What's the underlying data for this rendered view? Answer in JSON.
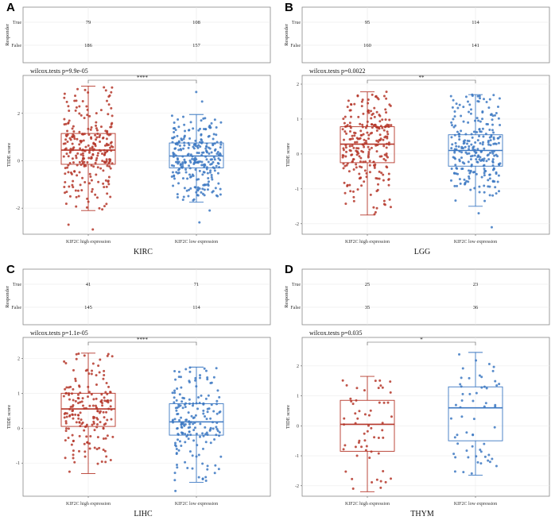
{
  "chart_data": [
    {
      "panel": "A",
      "type": "box",
      "cancer": "KIRC",
      "responder_table": {
        "ylabel": "Responder",
        "rows": [
          "True",
          "False"
        ],
        "counts": [
          [
            79,
            108
          ],
          [
            186,
            157
          ]
        ]
      },
      "test_label": "wilcox.tests p=9.9e-05",
      "significance": "****",
      "ylabel": "TIDE score",
      "xlabel": "KIRC",
      "categories": [
        "KIF2C high expression",
        "KIF2C low expression"
      ],
      "yticks": [
        -2,
        0,
        2
      ],
      "ylim": [
        -3.1,
        3.6
      ],
      "boxes": [
        {
          "name": "KIF2C high expression",
          "color": "#b5372a",
          "min": -2.1,
          "q1": -0.15,
          "median": 0.45,
          "q3": 1.15,
          "max": 3.15,
          "n": 265,
          "outliers": [
            -2.7,
            -2.9
          ]
        },
        {
          "name": "KIF2C low expression",
          "color": "#3c78c2",
          "min": -1.75,
          "q1": -0.3,
          "median": 0.2,
          "q3": 0.75,
          "max": 1.95,
          "n": 265,
          "outliers": [
            2.9,
            2.5,
            -2.1,
            -2.6
          ]
        }
      ]
    },
    {
      "panel": "B",
      "type": "box",
      "cancer": "LGG",
      "responder_table": {
        "ylabel": "Responder",
        "rows": [
          "True",
          "False"
        ],
        "counts": [
          [
            95,
            114
          ],
          [
            160,
            141
          ]
        ]
      },
      "test_label": "wilcox.tests p=0.0022",
      "significance": "**",
      "ylabel": "TIDE score",
      "xlabel": "LGG",
      "categories": [
        "KIF2C high expression",
        "KIF2C low expression"
      ],
      "yticks": [
        -2,
        -1,
        0,
        1,
        2
      ],
      "ylim": [
        -2.3,
        2.25
      ],
      "boxes": [
        {
          "name": "KIF2C high expression",
          "color": "#b5372a",
          "min": -1.75,
          "q1": -0.25,
          "median": 0.28,
          "q3": 0.78,
          "max": 1.78,
          "n": 255,
          "outliers": []
        },
        {
          "name": "KIF2C low expression",
          "color": "#3c78c2",
          "min": -1.5,
          "q1": -0.35,
          "median": 0.1,
          "q3": 0.55,
          "max": 1.7,
          "n": 255,
          "outliers": [
            -2.1,
            -1.7
          ]
        }
      ]
    },
    {
      "panel": "C",
      "type": "box",
      "cancer": "LIHC",
      "responder_table": {
        "ylabel": "Responder",
        "rows": [
          "True",
          "False"
        ],
        "counts": [
          [
            41,
            71
          ],
          [
            145,
            114
          ]
        ]
      },
      "test_label": "wilcox.tests p=1.1e-05",
      "significance": "****",
      "ylabel": "TIDE score",
      "xlabel": "LIHC",
      "categories": [
        "KIF2C high expression",
        "KIF2C low expression"
      ],
      "yticks": [
        -1,
        0,
        1,
        2
      ],
      "ylim": [
        -1.95,
        2.6
      ],
      "boxes": [
        {
          "name": "KIF2C high expression",
          "color": "#b5372a",
          "min": -1.3,
          "q1": 0.05,
          "median": 0.55,
          "q3": 1.0,
          "max": 2.15,
          "n": 186,
          "outliers": []
        },
        {
          "name": "KIF2C low expression",
          "color": "#3c78c2",
          "min": -1.55,
          "q1": -0.2,
          "median": 0.18,
          "q3": 0.7,
          "max": 1.75,
          "n": 185,
          "outliers": [
            -1.8
          ]
        }
      ]
    },
    {
      "panel": "D",
      "type": "box",
      "cancer": "THYM",
      "responder_table": {
        "ylabel": "Responder",
        "rows": [
          "True",
          "False"
        ],
        "counts": [
          [
            25,
            23
          ],
          [
            35,
            36
          ]
        ]
      },
      "test_label": "wilcox.tests p=0.035",
      "significance": "*",
      "ylabel": "TIDE score",
      "xlabel": "THYM",
      "categories": [
        "KIF2C high expression",
        "KIF2C low expression"
      ],
      "yticks": [
        -2,
        -1,
        0,
        1,
        2
      ],
      "ylim": [
        -2.35,
        2.95
      ],
      "boxes": [
        {
          "name": "KIF2C high expression",
          "color": "#b5372a",
          "min": -2.2,
          "q1": -0.85,
          "median": 0.05,
          "q3": 0.85,
          "max": 1.65,
          "n": 60,
          "outliers": []
        },
        {
          "name": "KIF2C low expression",
          "color": "#3c78c2",
          "min": -1.65,
          "q1": -0.5,
          "median": 0.6,
          "q3": 1.3,
          "max": 2.45,
          "n": 59,
          "outliers": []
        }
      ]
    }
  ]
}
